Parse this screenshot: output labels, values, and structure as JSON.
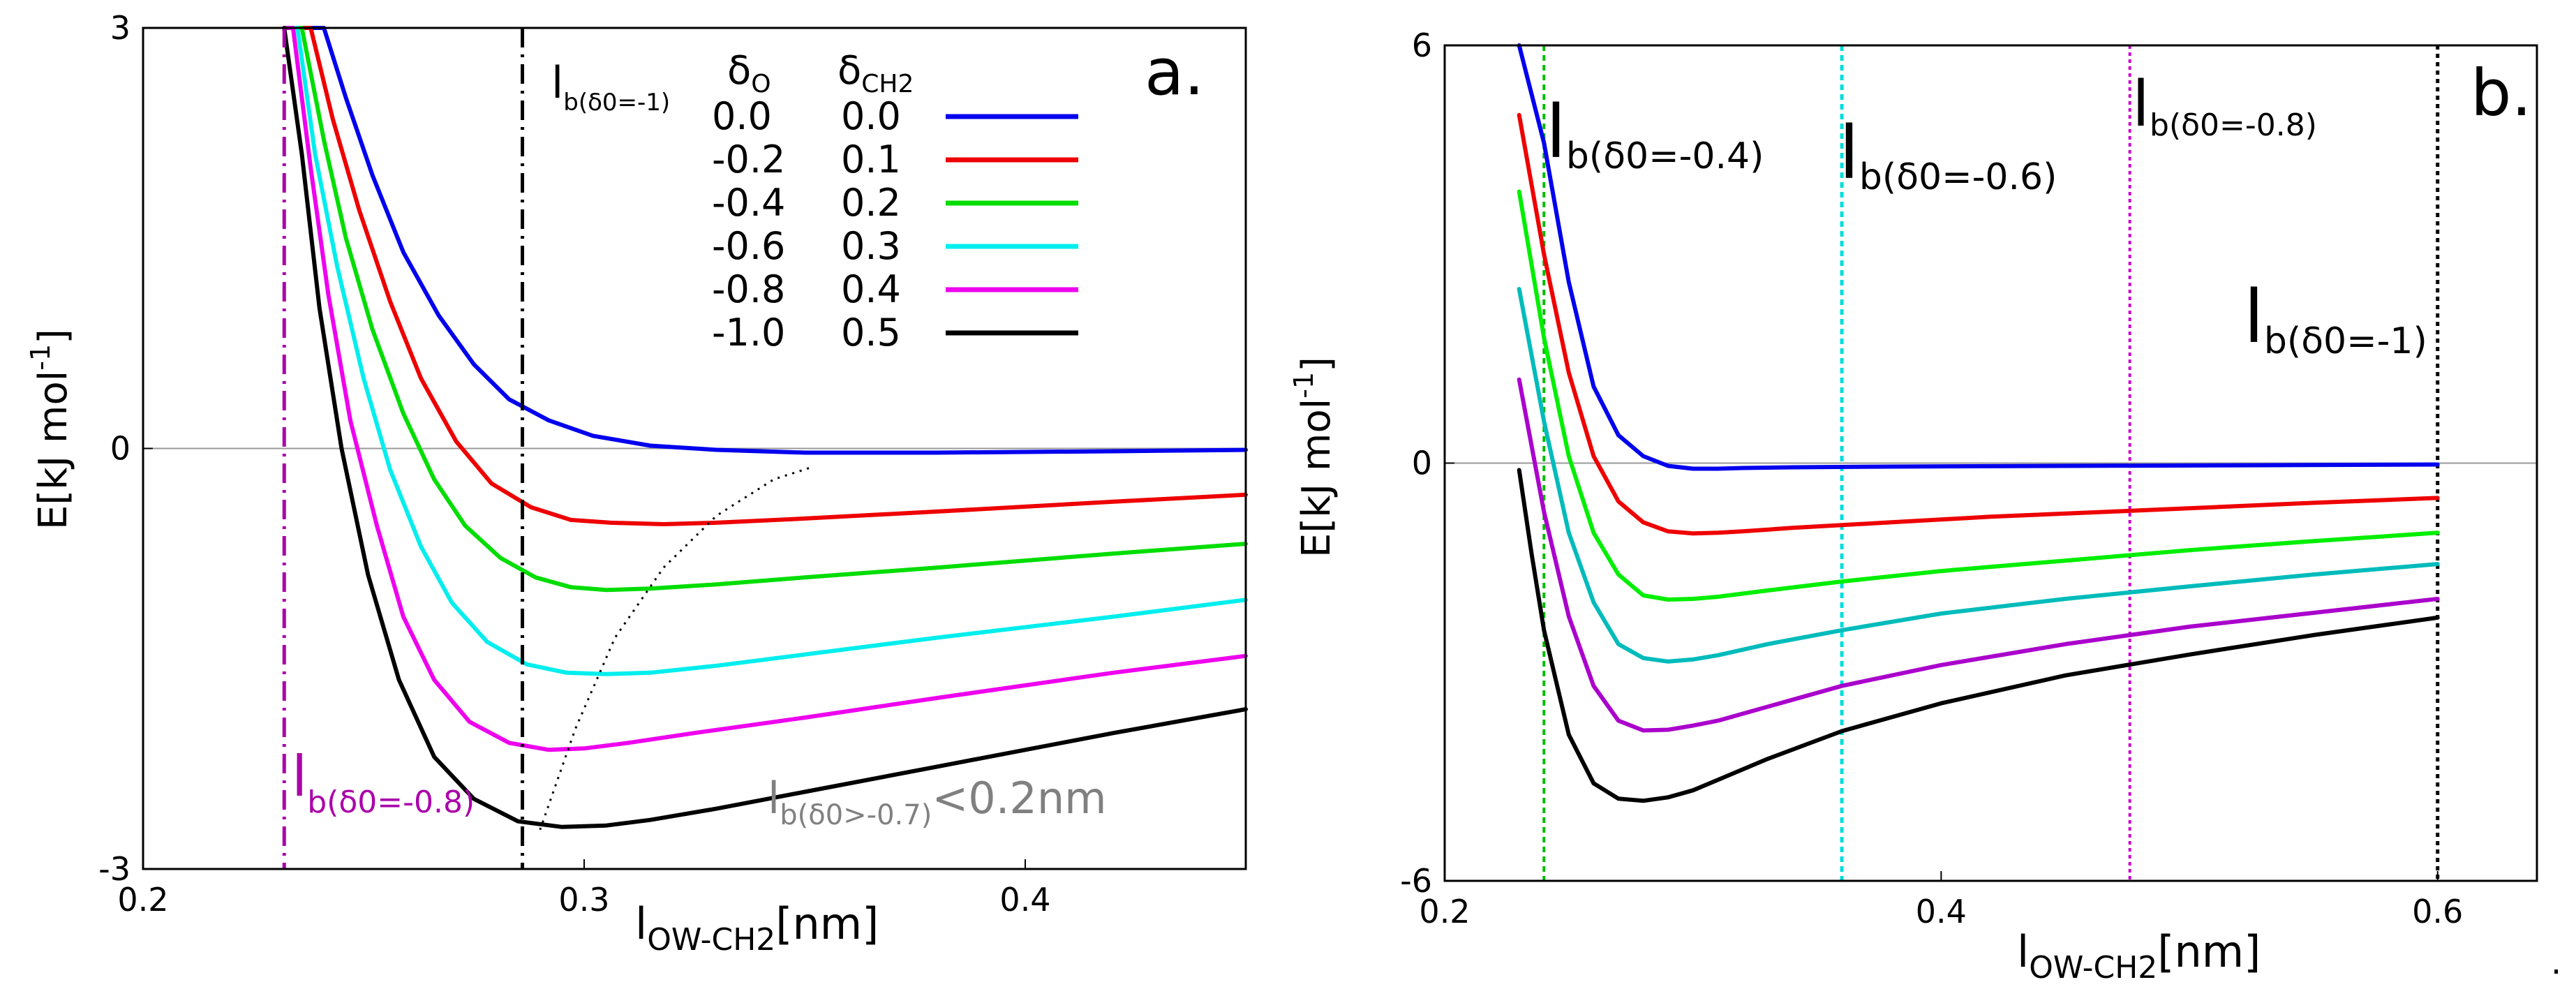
{
  "chart_data": [
    {
      "panel": "a.",
      "type": "line",
      "xlabel": {
        "main": "l",
        "sub": "OW-CH2",
        "unit": "[nm]"
      },
      "ylabel": {
        "main": "E[kJ mol",
        "sup": "-1",
        "tail": "]"
      },
      "xlim": [
        0.2,
        0.45
      ],
      "ylim": [
        -3,
        3
      ],
      "xticks": [
        {
          "value": 0.2,
          "label": "0.2"
        },
        {
          "value": 0.3,
          "label": "0.3"
        },
        {
          "value": 0.4,
          "label": "0.4"
        }
      ],
      "yticks": [
        {
          "value": 3,
          "label": "3"
        },
        {
          "value": 0,
          "label": "0"
        },
        {
          "value": -3,
          "label": "-3"
        }
      ],
      "zero_line": true,
      "legend": {
        "position": "top-right",
        "header_o": {
          "main": "δ",
          "sub": "O"
        },
        "header_ch2": {
          "main": "δ",
          "sub": "CH2"
        }
      },
      "series": [
        {
          "delta_o": "0.0",
          "delta_ch2": "0.0",
          "color": "#0000ee",
          "x": [
            0.232,
            0.241,
            0.246,
            0.252,
            0.259,
            0.267,
            0.275,
            0.283,
            0.292,
            0.302,
            0.315,
            0.33,
            0.35,
            0.38,
            0.42,
            0.45
          ],
          "y": [
            3.0,
            3.0,
            2.5,
            1.95,
            1.4,
            0.95,
            0.6,
            0.35,
            0.2,
            0.09,
            0.02,
            -0.01,
            -0.03,
            -0.03,
            -0.02,
            -0.01
          ]
        },
        {
          "delta_o": "-0.2",
          "delta_ch2": "0.1",
          "color": "#ee0000",
          "x": [
            0.232,
            0.238,
            0.243,
            0.249,
            0.256,
            0.263,
            0.271,
            0.279,
            0.288,
            0.297,
            0.306,
            0.318,
            0.33,
            0.35,
            0.38,
            0.42,
            0.45
          ],
          "y": [
            3.0,
            3.0,
            2.35,
            1.7,
            1.05,
            0.5,
            0.05,
            -0.25,
            -0.42,
            -0.51,
            -0.53,
            -0.54,
            -0.53,
            -0.5,
            -0.45,
            -0.38,
            -0.33
          ]
        },
        {
          "delta_o": "-0.4",
          "delta_ch2": "0.2",
          "color": "#00dd00",
          "x": [
            0.232,
            0.236,
            0.241,
            0.246,
            0.252,
            0.259,
            0.266,
            0.273,
            0.281,
            0.289,
            0.297,
            0.305,
            0.315,
            0.33,
            0.35,
            0.38,
            0.42,
            0.45
          ],
          "y": [
            3.0,
            3.0,
            2.2,
            1.5,
            0.85,
            0.25,
            -0.22,
            -0.55,
            -0.78,
            -0.92,
            -0.99,
            -1.01,
            -1.0,
            -0.97,
            -0.92,
            -0.85,
            -0.75,
            -0.68
          ]
        },
        {
          "delta_o": "-0.6",
          "delta_ch2": "0.3",
          "color": "#00eeee",
          "x": [
            0.232,
            0.235,
            0.239,
            0.244,
            0.25,
            0.256,
            0.263,
            0.27,
            0.278,
            0.287,
            0.296,
            0.305,
            0.315,
            0.33,
            0.35,
            0.38,
            0.42,
            0.45
          ],
          "y": [
            3.0,
            3.0,
            2.1,
            1.3,
            0.5,
            -0.15,
            -0.7,
            -1.1,
            -1.38,
            -1.54,
            -1.6,
            -1.61,
            -1.6,
            -1.55,
            -1.47,
            -1.35,
            -1.2,
            -1.08
          ]
        },
        {
          "delta_o": "-0.8",
          "delta_ch2": "0.4",
          "color": "#ee00ee",
          "x": [
            0.232,
            0.234,
            0.238,
            0.242,
            0.247,
            0.253,
            0.259,
            0.266,
            0.274,
            0.283,
            0.292,
            0.3,
            0.31,
            0.325,
            0.35,
            0.38,
            0.42,
            0.45
          ],
          "y": [
            3.0,
            3.0,
            2.0,
            1.1,
            0.2,
            -0.55,
            -1.2,
            -1.65,
            -1.95,
            -2.1,
            -2.15,
            -2.14,
            -2.1,
            -2.03,
            -1.92,
            -1.78,
            -1.6,
            -1.48
          ]
        },
        {
          "delta_o": "-1.0",
          "delta_ch2": "0.5",
          "color": "#000000",
          "x": [
            0.232,
            0.236,
            0.24,
            0.245,
            0.251,
            0.258,
            0.266,
            0.275,
            0.285,
            0.295,
            0.305,
            0.315,
            0.33,
            0.35,
            0.38,
            0.42,
            0.45
          ],
          "y": [
            3.0,
            2.1,
            1.0,
            0.0,
            -0.9,
            -1.65,
            -2.2,
            -2.5,
            -2.66,
            -2.7,
            -2.69,
            -2.65,
            -2.57,
            -2.45,
            -2.27,
            -2.03,
            -1.86
          ]
        }
      ],
      "vlines": [
        {
          "x": 0.232,
          "color": "#aa00aa",
          "label": {
            "main": "l",
            "sub": "b(δ0=-0.8)"
          }
        },
        {
          "x": 0.286,
          "color": "#000000",
          "label": {
            "main": "l",
            "sub": "b(δ0=-1)"
          }
        }
      ],
      "guide_curve": {
        "x": [
          0.29,
          0.298,
          0.307,
          0.318,
          0.33,
          0.343,
          0.352
        ],
        "y": [
          -2.72,
          -2.0,
          -1.35,
          -0.85,
          -0.48,
          -0.22,
          -0.13
        ]
      },
      "annotation": {
        "main": "l",
        "sub": "b(δ0>-0.7)",
        "tail": "<0.2nm",
        "color": "#808080"
      }
    },
    {
      "panel": "b.",
      "type": "line",
      "xlabel": {
        "main": "l",
        "sub": "OW-CH2",
        "unit": "[nm]"
      },
      "ylabel": {
        "main": "E[kJ mol",
        "sup": "-1",
        "tail": "]"
      },
      "xlim": [
        0.2,
        0.64
      ],
      "ylim": [
        -6,
        6
      ],
      "xticks": [
        {
          "value": 0.2,
          "label": "0.2"
        },
        {
          "value": 0.4,
          "label": "0.4"
        },
        {
          "value": 0.6,
          "label": "0.6"
        }
      ],
      "yticks": [
        {
          "value": 6,
          "label": "6"
        },
        {
          "value": 0,
          "label": "0"
        },
        {
          "value": -6,
          "label": "-6"
        }
      ],
      "zero_line": true,
      "series": [
        {
          "color": "#0000ee",
          "x": [
            0.23,
            0.24,
            0.25,
            0.26,
            0.27,
            0.28,
            0.29,
            0.3,
            0.31,
            0.32,
            0.34,
            0.38,
            0.45,
            0.53,
            0.6
          ],
          "y": [
            6.0,
            4.6,
            2.6,
            1.1,
            0.4,
            0.1,
            -0.04,
            -0.08,
            -0.08,
            -0.07,
            -0.06,
            -0.05,
            -0.04,
            -0.03,
            -0.02
          ]
        },
        {
          "color": "#ee0000",
          "x": [
            0.23,
            0.24,
            0.25,
            0.26,
            0.27,
            0.28,
            0.29,
            0.3,
            0.31,
            0.32,
            0.34,
            0.38,
            0.42,
            0.48,
            0.55,
            0.6
          ],
          "y": [
            5.0,
            3.0,
            1.3,
            0.1,
            -0.55,
            -0.85,
            -0.98,
            -1.01,
            -1.0,
            -0.98,
            -0.93,
            -0.85,
            -0.77,
            -0.68,
            -0.57,
            -0.5
          ]
        },
        {
          "color": "#00ee00",
          "x": [
            0.23,
            0.24,
            0.25,
            0.26,
            0.27,
            0.28,
            0.29,
            0.3,
            0.31,
            0.33,
            0.36,
            0.4,
            0.45,
            0.5,
            0.55,
            0.6
          ],
          "y": [
            3.9,
            1.8,
            0.1,
            -1.0,
            -1.6,
            -1.9,
            -1.96,
            -1.95,
            -1.92,
            -1.83,
            -1.7,
            -1.55,
            -1.4,
            -1.25,
            -1.12,
            -1.0
          ]
        },
        {
          "color": "#00bbbb",
          "x": [
            0.23,
            0.24,
            0.25,
            0.26,
            0.27,
            0.28,
            0.29,
            0.3,
            0.31,
            0.33,
            0.36,
            0.4,
            0.45,
            0.5,
            0.55,
            0.6
          ],
          "y": [
            2.5,
            0.6,
            -1.0,
            -2.0,
            -2.6,
            -2.8,
            -2.85,
            -2.82,
            -2.76,
            -2.6,
            -2.4,
            -2.16,
            -1.95,
            -1.77,
            -1.6,
            -1.45
          ]
        },
        {
          "color": "#aa00cc",
          "x": [
            0.23,
            0.24,
            0.25,
            0.26,
            0.27,
            0.28,
            0.29,
            0.3,
            0.31,
            0.33,
            0.36,
            0.4,
            0.45,
            0.5,
            0.55,
            0.6
          ],
          "y": [
            1.2,
            -0.7,
            -2.2,
            -3.2,
            -3.7,
            -3.84,
            -3.83,
            -3.77,
            -3.7,
            -3.5,
            -3.2,
            -2.9,
            -2.6,
            -2.35,
            -2.15,
            -1.95
          ]
        },
        {
          "color": "#000000",
          "x": [
            0.23,
            0.235,
            0.24,
            0.25,
            0.26,
            0.27,
            0.28,
            0.29,
            0.3,
            0.31,
            0.33,
            0.36,
            0.4,
            0.45,
            0.5,
            0.55,
            0.6
          ],
          "y": [
            -0.1,
            -1.3,
            -2.4,
            -3.9,
            -4.6,
            -4.82,
            -4.85,
            -4.8,
            -4.7,
            -4.55,
            -4.25,
            -3.85,
            -3.45,
            -3.05,
            -2.75,
            -2.47,
            -2.22
          ]
        }
      ],
      "vlines": [
        {
          "x": 0.24,
          "color": "#00bb00",
          "label": {
            "main": "l",
            "sub": "b(δ0=-0.4)"
          }
        },
        {
          "x": 0.36,
          "color": "#00dddd",
          "label": {
            "main": "l",
            "sub": "b(δ0=-0.6)"
          }
        },
        {
          "x": 0.476,
          "color": "#cc00cc",
          "label": {
            "main": "l",
            "sub": "b(δ0=-0.8)"
          }
        },
        {
          "x": 0.6,
          "color": "#000000",
          "label": {
            "main": "l",
            "sub": "b(δ0=-1)"
          }
        }
      ]
    }
  ],
  "trailing_mark": "."
}
